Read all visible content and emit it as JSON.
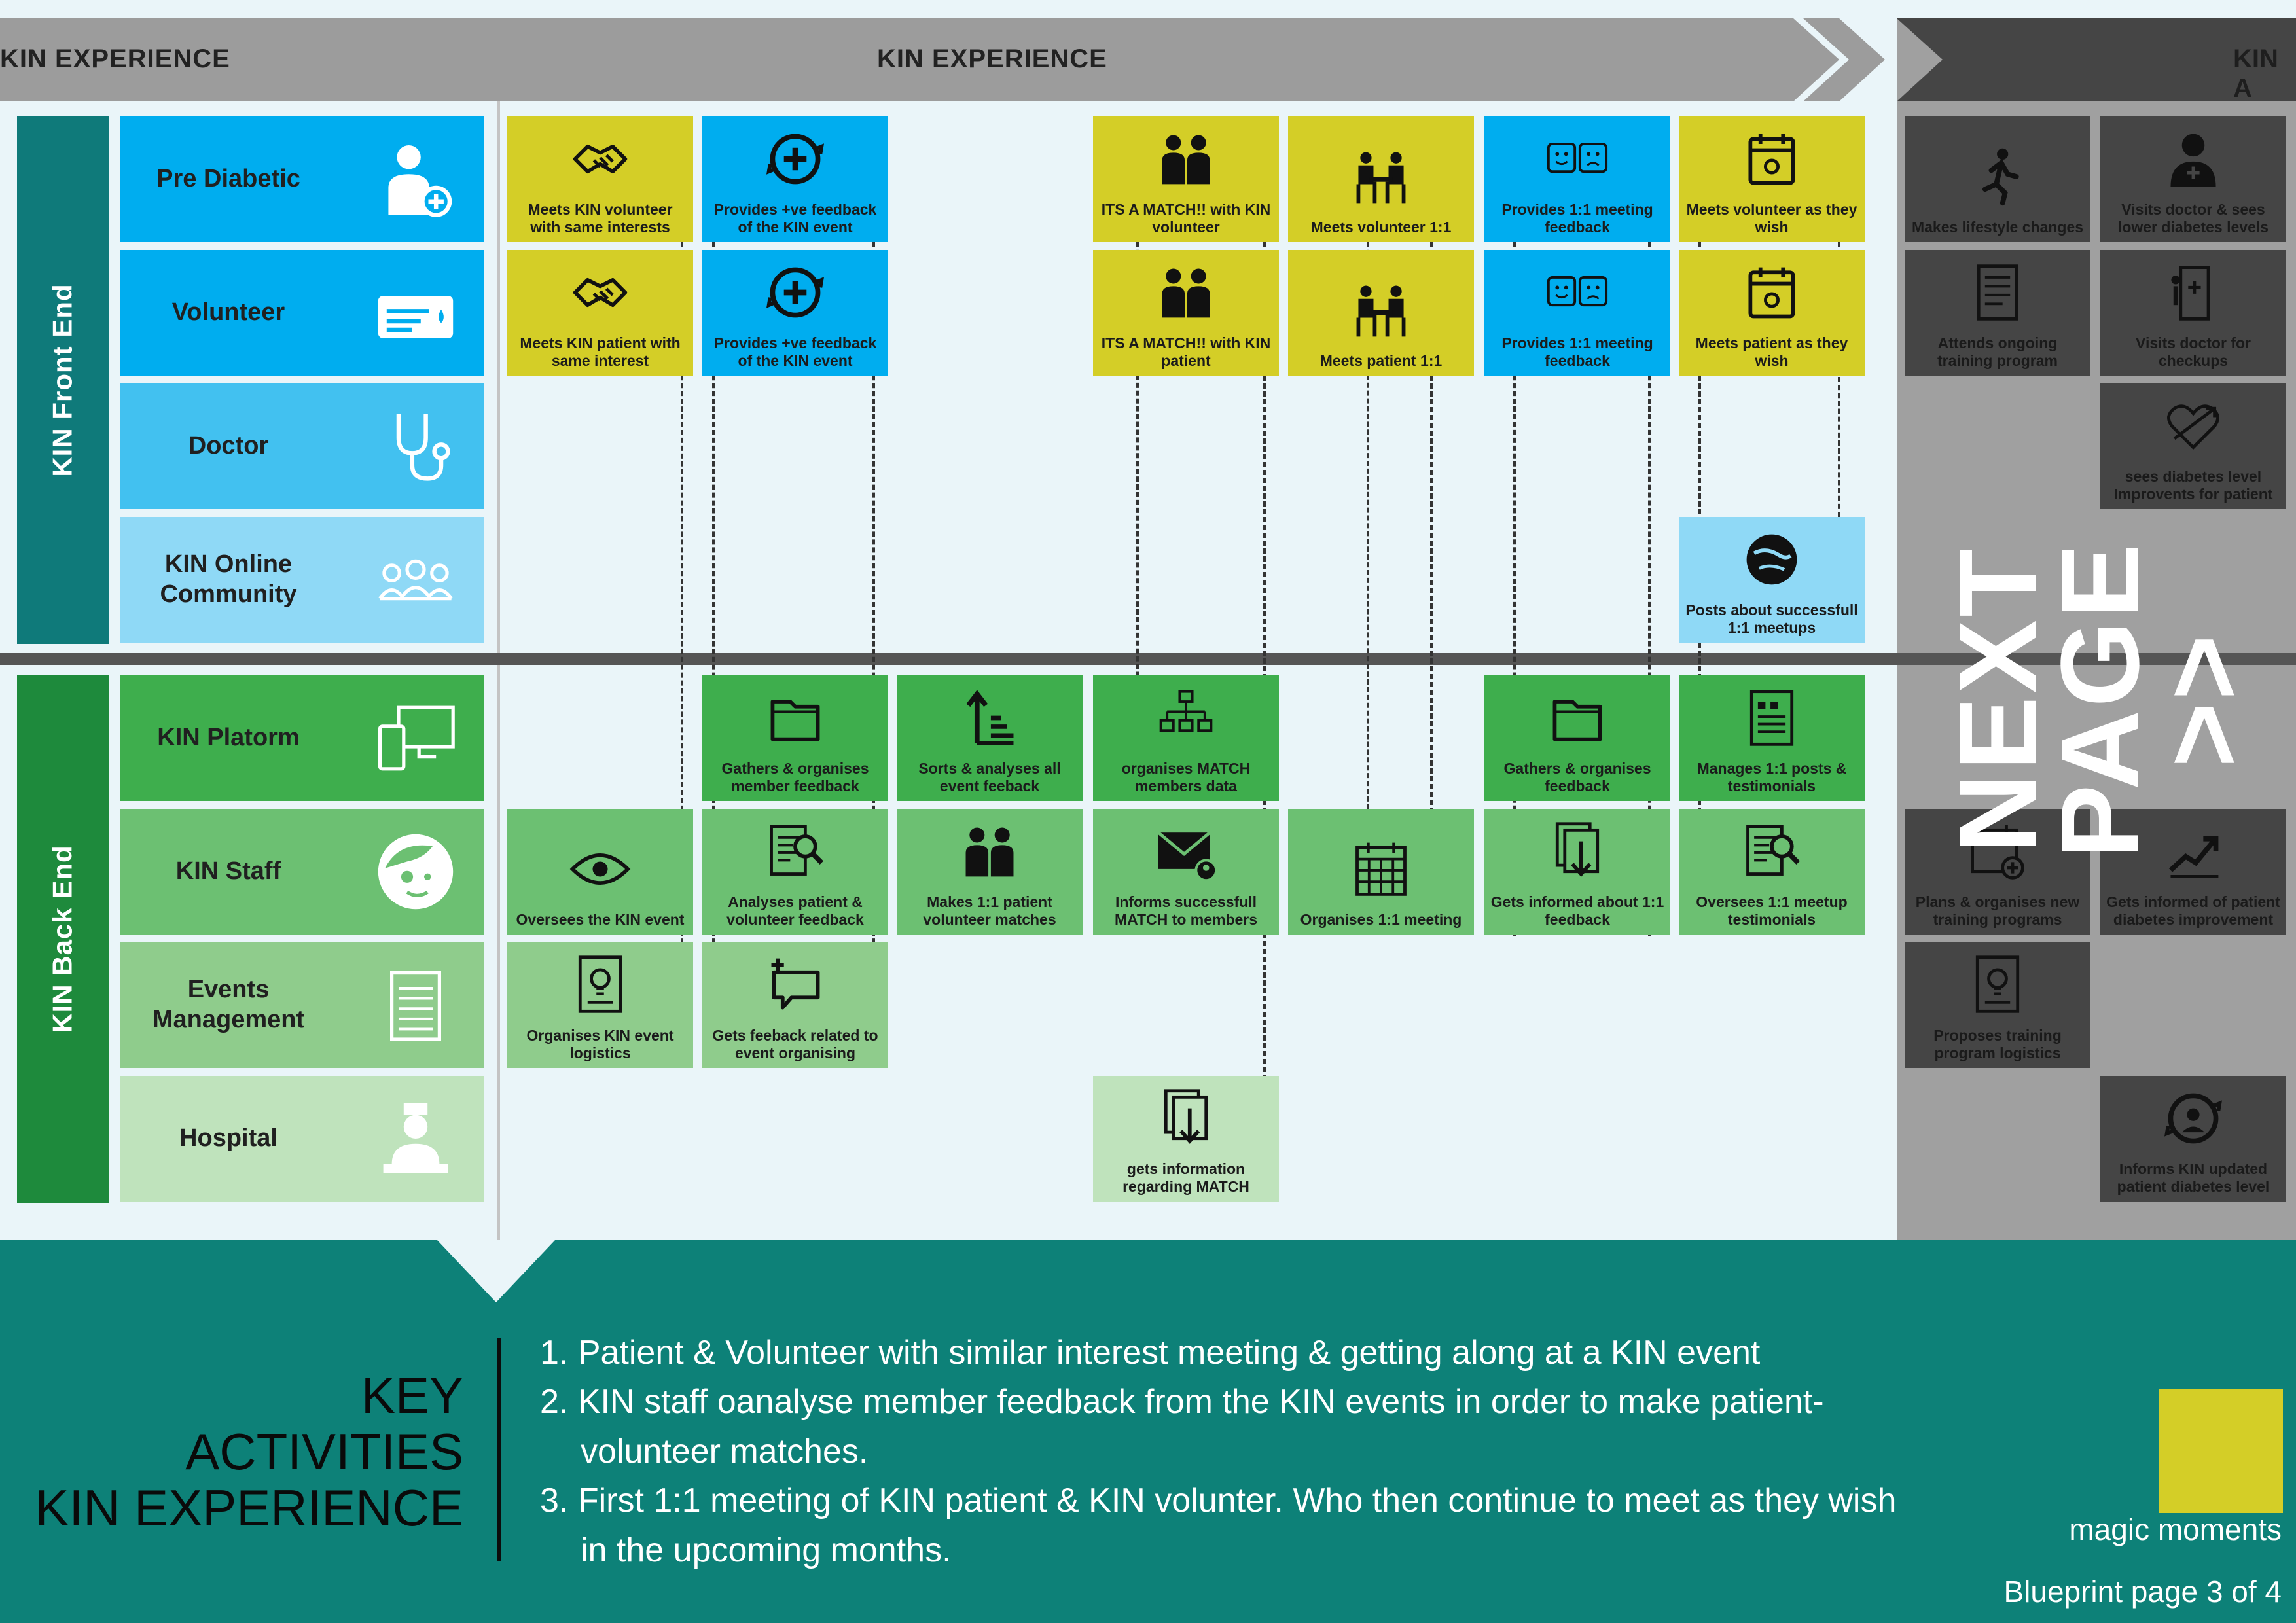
{
  "banner": {
    "left_label": "KIN EXPERIENCE",
    "main_label": "KIN EXPERIENCE",
    "next_section_label": "KIN A"
  },
  "colors": {
    "yellow": "#d4ce27",
    "blue": "#00adef",
    "light_blue": "#8fd9f6",
    "green_dark": "#3eae4d",
    "green_mid": "#6cc072",
    "green_light": "#a9d9a8",
    "grey_dark": "#454545",
    "grey_mid": "#a0a0a0",
    "teal": "#0d8178",
    "lane_teal": "#0f7a7a",
    "lane_green": "#1e8a3c"
  },
  "sections": {
    "front_end": "KIN Front End",
    "back_end": "KIN Back End"
  },
  "lanes": [
    {
      "label": "Pre Diabetic",
      "icon": "patient-icon"
    },
    {
      "label": "Volunteer",
      "icon": "pointing-hand-icon"
    },
    {
      "label": "Doctor",
      "icon": "stethoscope-icon"
    },
    {
      "label": "KIN Online\nCommunity",
      "icon": "community-icon"
    },
    {
      "label": "KIN Platorm",
      "icon": "devices-icon"
    },
    {
      "label": "KIN Staff",
      "icon": "staff-face-icon"
    },
    {
      "label": "Events\nManagement",
      "icon": "clipboard-icon"
    },
    {
      "label": "Hospital",
      "icon": "nurse-icon"
    }
  ],
  "cards": [
    {
      "text": "Meets KIN volunteer with same interests",
      "icon": "handshake-icon"
    },
    {
      "text": "Provides +ve feedback of the KIN event",
      "icon": "plus-cycle-icon"
    },
    {
      "text": "ITS A MATCH!! with KIN volunteer",
      "icon": "two-people-icon"
    },
    {
      "text": "Meets volunteer 1:1",
      "icon": "meeting-table-icon"
    },
    {
      "text": "Provides 1:1 meeting feedback",
      "icon": "faces-feedback-icon"
    },
    {
      "text": "Meets volunteer as they wish",
      "icon": "calendar-icon"
    },
    {
      "text": "Meets KIN patient with same interest",
      "icon": "handshake-icon"
    },
    {
      "text": "Provides +ve feedback of the KIN event",
      "icon": "plus-cycle-icon"
    },
    {
      "text": "ITS A MATCH!! with KIN patient",
      "icon": "two-people-icon"
    },
    {
      "text": "Meets patient 1:1",
      "icon": "meeting-table-icon"
    },
    {
      "text": "Provides 1:1 meeting feedback",
      "icon": "faces-feedback-icon"
    },
    {
      "text": "Meets patient as they wish",
      "icon": "calendar-icon"
    },
    {
      "text": "Posts about successfull 1:1 meetups",
      "icon": "globe-chat-icon"
    },
    {
      "text": "Gathers & organises member feedback",
      "icon": "folder-icon"
    },
    {
      "text": "Sorts & analyses all event feeback",
      "icon": "sort-icon"
    },
    {
      "text": "organises MATCH members data",
      "icon": "network-icon"
    },
    {
      "text": "Gathers & organises feedback",
      "icon": "folder-icon"
    },
    {
      "text": "Manages 1:1 posts & testimonials",
      "icon": "quote-doc-icon"
    },
    {
      "text": "Oversees the KIN event",
      "icon": "eye-icon"
    },
    {
      "text": "Analyses patient & volunteer feedback",
      "icon": "doc-search-icon"
    },
    {
      "text": "Makes 1:1 patient volunteer matches",
      "icon": "two-people-icon"
    },
    {
      "text": "Informs successfull MATCH to members",
      "icon": "mail-user-icon"
    },
    {
      "text": "Organises 1:1 meeting",
      "icon": "calendar-grid-icon"
    },
    {
      "text": "Gets informed about 1:1 feedback",
      "icon": "doc-down-icon"
    },
    {
      "text": "Oversees 1:1 meetup testimonials",
      "icon": "doc-search-icon"
    },
    {
      "text": "Organises KIN event logistics",
      "icon": "bulb-doc-icon"
    },
    {
      "text": "Gets feeback related to event organising",
      "icon": "chat-plus-icon"
    },
    {
      "text": "gets information regarding MATCH",
      "icon": "doc-down-icon"
    },
    {
      "text": "Makes lifestyle changes",
      "icon": "runner-icon"
    },
    {
      "text": "Visits doctor & sees lower diabetes levels",
      "icon": "doctor-icon"
    },
    {
      "text": "Attends ongoing training program",
      "icon": "notebook-icon"
    },
    {
      "text": "Visits doctor for checkups",
      "icon": "door-cross-icon"
    },
    {
      "text": "sees diabetes level Improvents for patient",
      "icon": "heart-arrow-icon"
    },
    {
      "text": "Plans & organises new training programs",
      "icon": "calendar-plus-icon"
    },
    {
      "text": "Gets informed of patient diabetes improvement",
      "icon": "chart-up-icon"
    },
    {
      "text": "Proposes training program logistics",
      "icon": "bulb-doc-icon"
    },
    {
      "text": "Informs KIN updated patient diabetes level",
      "icon": "cycle-user-icon"
    }
  ],
  "next_page": "NEXT\nPAGE >>",
  "footer": {
    "title_line1": "KEY",
    "title_line2": "ACTIVITIES",
    "title_line3": "KIN EXPERIENCE",
    "items": [
      "1. Patient & Volunteer with similar interest meeting & getting along at a KIN event",
      "2. KIN staff oanalyse member feedback from the KIN events in order to make patient-volunteer matches.",
      "3. First 1:1 meeting of KIN patient & KIN volunter. Who then continue to meet as they wish in the upcoming months."
    ],
    "legend_label": "magic moments",
    "page_label": "Blueprint page 3 of 4"
  }
}
